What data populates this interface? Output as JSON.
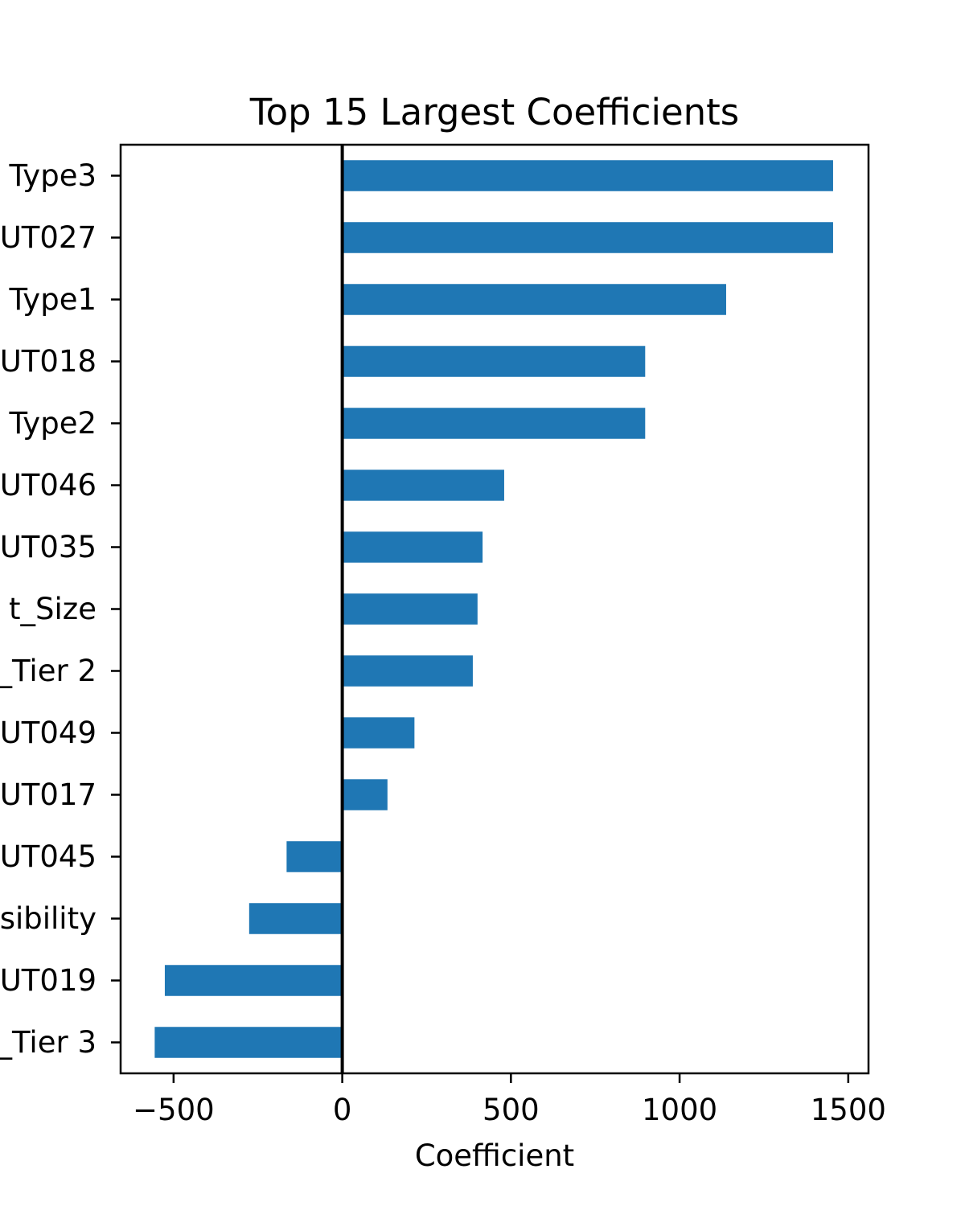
{
  "chart_data": {
    "type": "bar",
    "orientation": "horizontal",
    "title": "Top 15 Largest Coefficients",
    "xlabel": "Coefficient",
    "ylabel": "",
    "xlim": [
      -657,
      1560
    ],
    "xticks": [
      -500,
      0,
      500,
      1000,
      1500
    ],
    "xtick_labels": [
      "−500",
      "0",
      "500",
      "1000",
      "1500"
    ],
    "grid": false,
    "legend": "none",
    "bar_color": "#1f77b4",
    "zero_line_color": "#000000",
    "categories": [
      "Type3",
      "UT027",
      "Type1",
      "UT018",
      "Type2",
      "UT046",
      "UT035",
      "t_Size",
      "_Tier 2",
      "UT049",
      "UT017",
      "UT045",
      "sibility",
      "UT019",
      "_Tier 3"
    ],
    "values": [
      1455,
      1455,
      1138,
      898,
      898,
      480,
      416,
      401,
      387,
      214,
      134,
      -165,
      -276,
      -526,
      -556
    ]
  }
}
